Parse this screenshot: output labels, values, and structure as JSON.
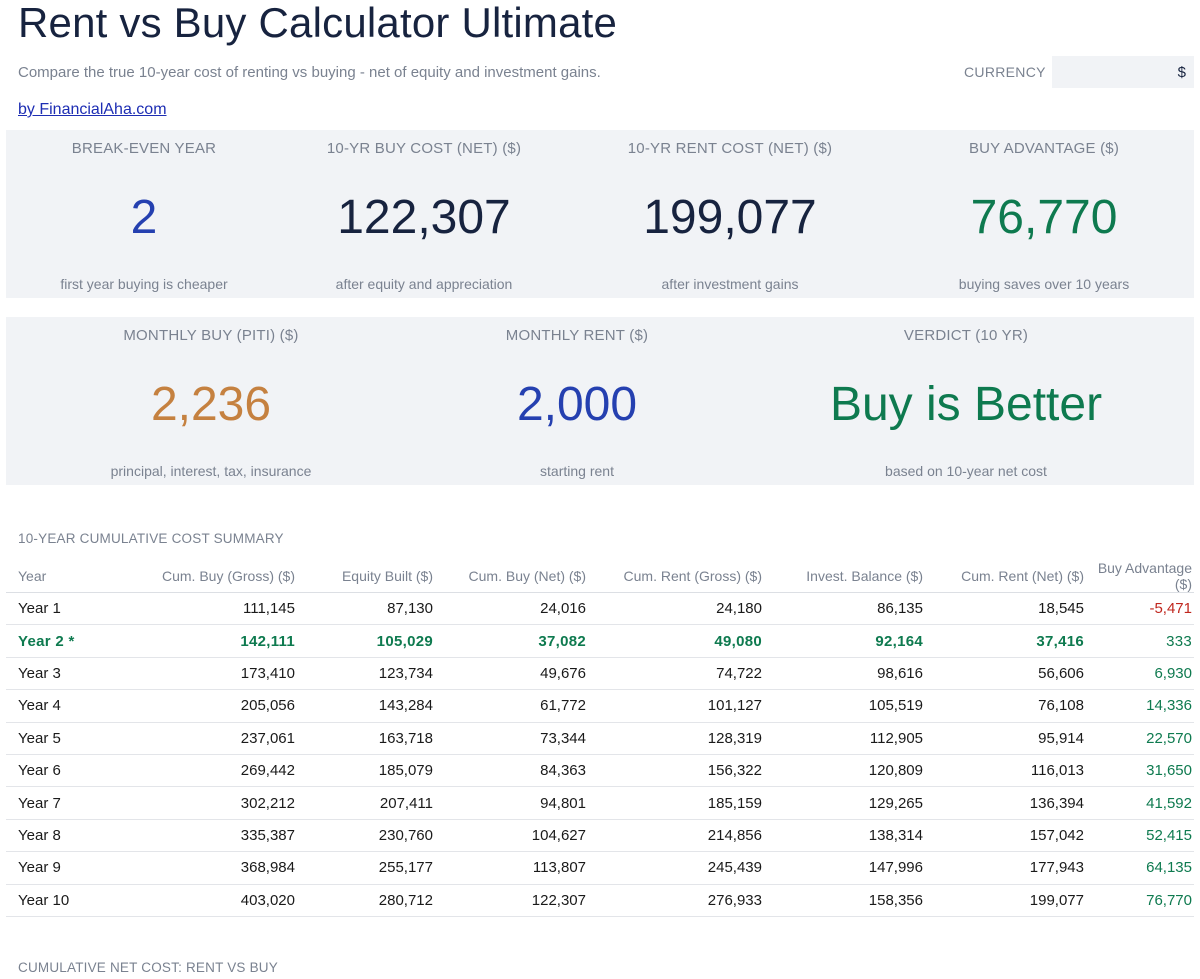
{
  "header": {
    "title": "Rent vs Buy Calculator Ultimate",
    "subtitle": "Compare the true 10-year cost of renting vs buying - net of equity and investment gains.",
    "byline": "by FinancialAha.com",
    "currency_label": "CURRENCY",
    "currency_value": "$"
  },
  "kpis_row1": [
    {
      "label": "BREAK-EVEN YEAR",
      "value": "2",
      "sub": "first year buying is cheaper",
      "color": "#2540b0"
    },
    {
      "label": "10-YR BUY COST (NET) ($)",
      "value": "122,307",
      "sub": "after equity and appreciation",
      "color": "#17233f"
    },
    {
      "label": "10-YR RENT COST (NET) ($)",
      "value": "199,077",
      "sub": "after investment gains",
      "color": "#17233f"
    },
    {
      "label": "BUY ADVANTAGE ($)",
      "value": "76,770",
      "sub": "buying saves over 10 years",
      "color": "#0e7a4f"
    }
  ],
  "kpis_row2": [
    {
      "label": "MONTHLY BUY (PITI) ($)",
      "value": "2,236",
      "sub": "principal, interest, tax, insurance",
      "color": "#c58140"
    },
    {
      "label": "MONTHLY RENT ($)",
      "value": "2,000",
      "sub": "starting rent",
      "color": "#2540b0"
    },
    {
      "label": "VERDICT (10 YR)",
      "value": "Buy is Better",
      "sub": "based on 10-year net cost",
      "color": "#0e7a4f"
    }
  ],
  "summary": {
    "label": "10-YEAR CUMULATIVE COST SUMMARY",
    "columns": [
      "Year",
      "Cum. Buy (Gross) ($)",
      "Equity Built ($)",
      "Cum. Buy (Net) ($)",
      "Cum. Rent (Gross) ($)",
      "Invest. Balance ($)",
      "Cum. Rent (Net) ($)",
      "Buy Advantage ($)"
    ],
    "rows": [
      [
        "Year 1",
        "111,145",
        "87,130",
        "24,016",
        "24,180",
        "86,135",
        "18,545",
        "-5,471"
      ],
      [
        "Year 2 *",
        "142,111",
        "105,029",
        "37,082",
        "49,080",
        "92,164",
        "37,416",
        "333"
      ],
      [
        "Year 3",
        "173,410",
        "123,734",
        "49,676",
        "74,722",
        "98,616",
        "56,606",
        "6,930"
      ],
      [
        "Year 4",
        "205,056",
        "143,284",
        "61,772",
        "101,127",
        "105,519",
        "76,108",
        "14,336"
      ],
      [
        "Year 5",
        "237,061",
        "163,718",
        "73,344",
        "128,319",
        "112,905",
        "95,914",
        "22,570"
      ],
      [
        "Year 6",
        "269,442",
        "185,079",
        "84,363",
        "156,322",
        "120,809",
        "116,013",
        "31,650"
      ],
      [
        "Year 7",
        "302,212",
        "207,411",
        "94,801",
        "185,159",
        "129,265",
        "136,394",
        "41,592"
      ],
      [
        "Year 8",
        "335,387",
        "230,760",
        "104,627",
        "214,856",
        "138,314",
        "157,042",
        "52,415"
      ],
      [
        "Year 9",
        "368,984",
        "255,177",
        "113,807",
        "245,439",
        "147,996",
        "177,943",
        "64,135"
      ],
      [
        "Year 10",
        "403,020",
        "280,712",
        "122,307",
        "276,933",
        "158,356",
        "199,077",
        "76,770"
      ]
    ],
    "highlight_row": 1
  },
  "chart_section": {
    "label": "CUMULATIVE NET COST: RENT VS BUY"
  }
}
